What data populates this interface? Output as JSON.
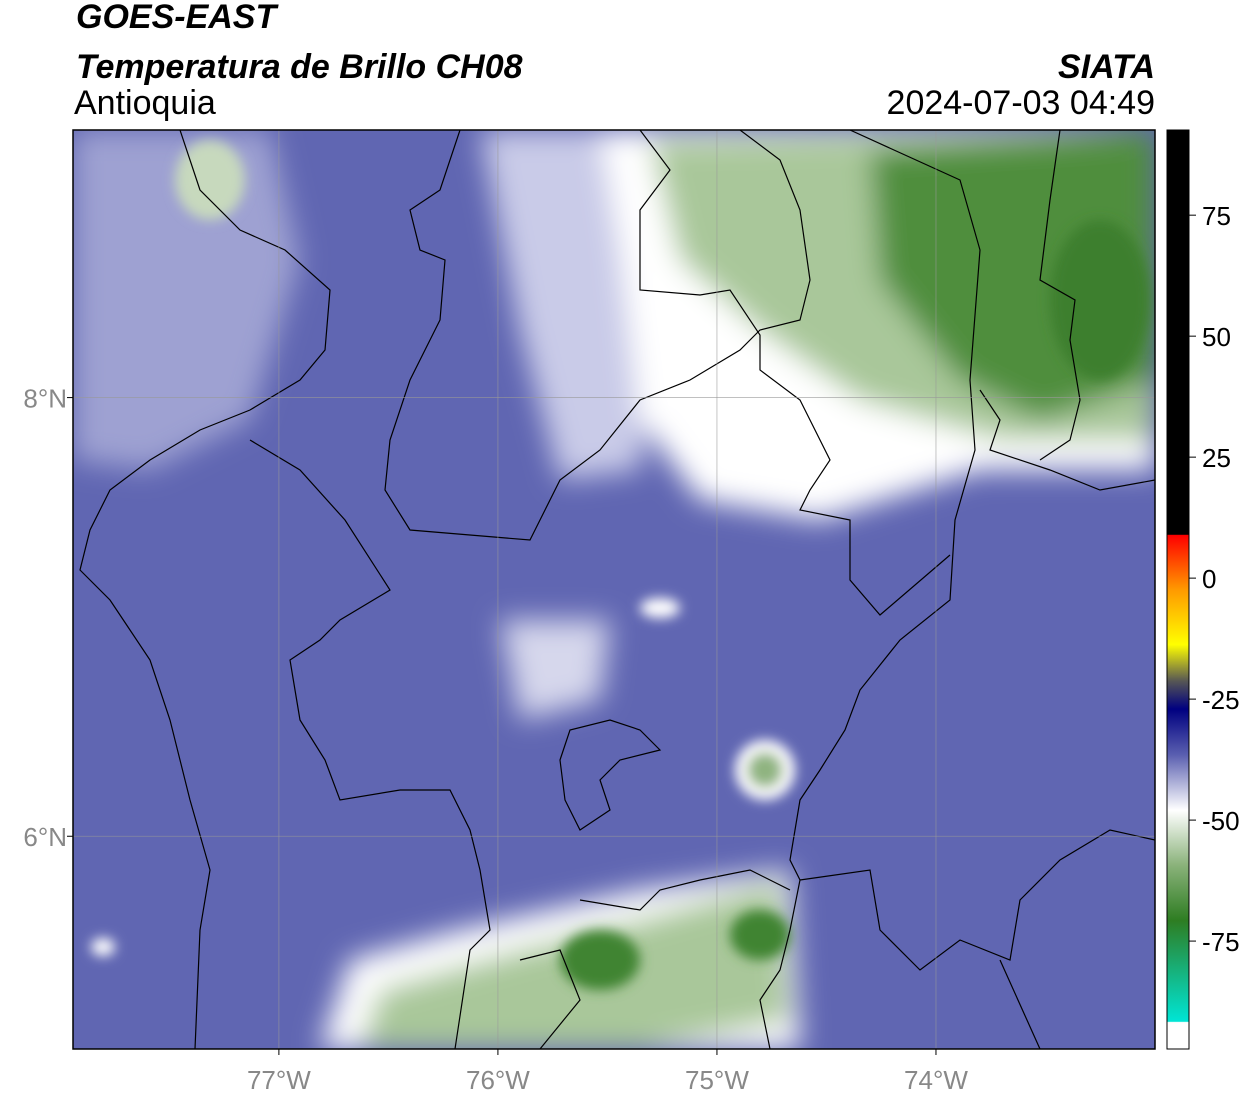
{
  "header": {
    "satellite": "GOES-EAST",
    "product": "Temperatura de Brillo CH08",
    "agency": "SIATA",
    "region": "Antioquia",
    "datetime": "2024-07-03 04:49"
  },
  "map": {
    "lonlim": [
      -77.94,
      -73.0
    ],
    "latlim": [
      5.03,
      9.22
    ],
    "lonticks": [
      {
        "value": -77,
        "label": "77°W"
      },
      {
        "value": -76,
        "label": "76°W"
      },
      {
        "value": -75,
        "label": "75°W"
      },
      {
        "value": -74,
        "label": "74°W"
      }
    ],
    "latticks": [
      {
        "value": 8,
        "label": "8°N"
      },
      {
        "value": 6,
        "label": "6°N"
      }
    ],
    "grid": true
  },
  "colorbar": {
    "lim": [
      -97.3,
      92.6
    ],
    "ticks": [
      75,
      50,
      25,
      0,
      -25,
      -50,
      -75
    ]
  }
}
